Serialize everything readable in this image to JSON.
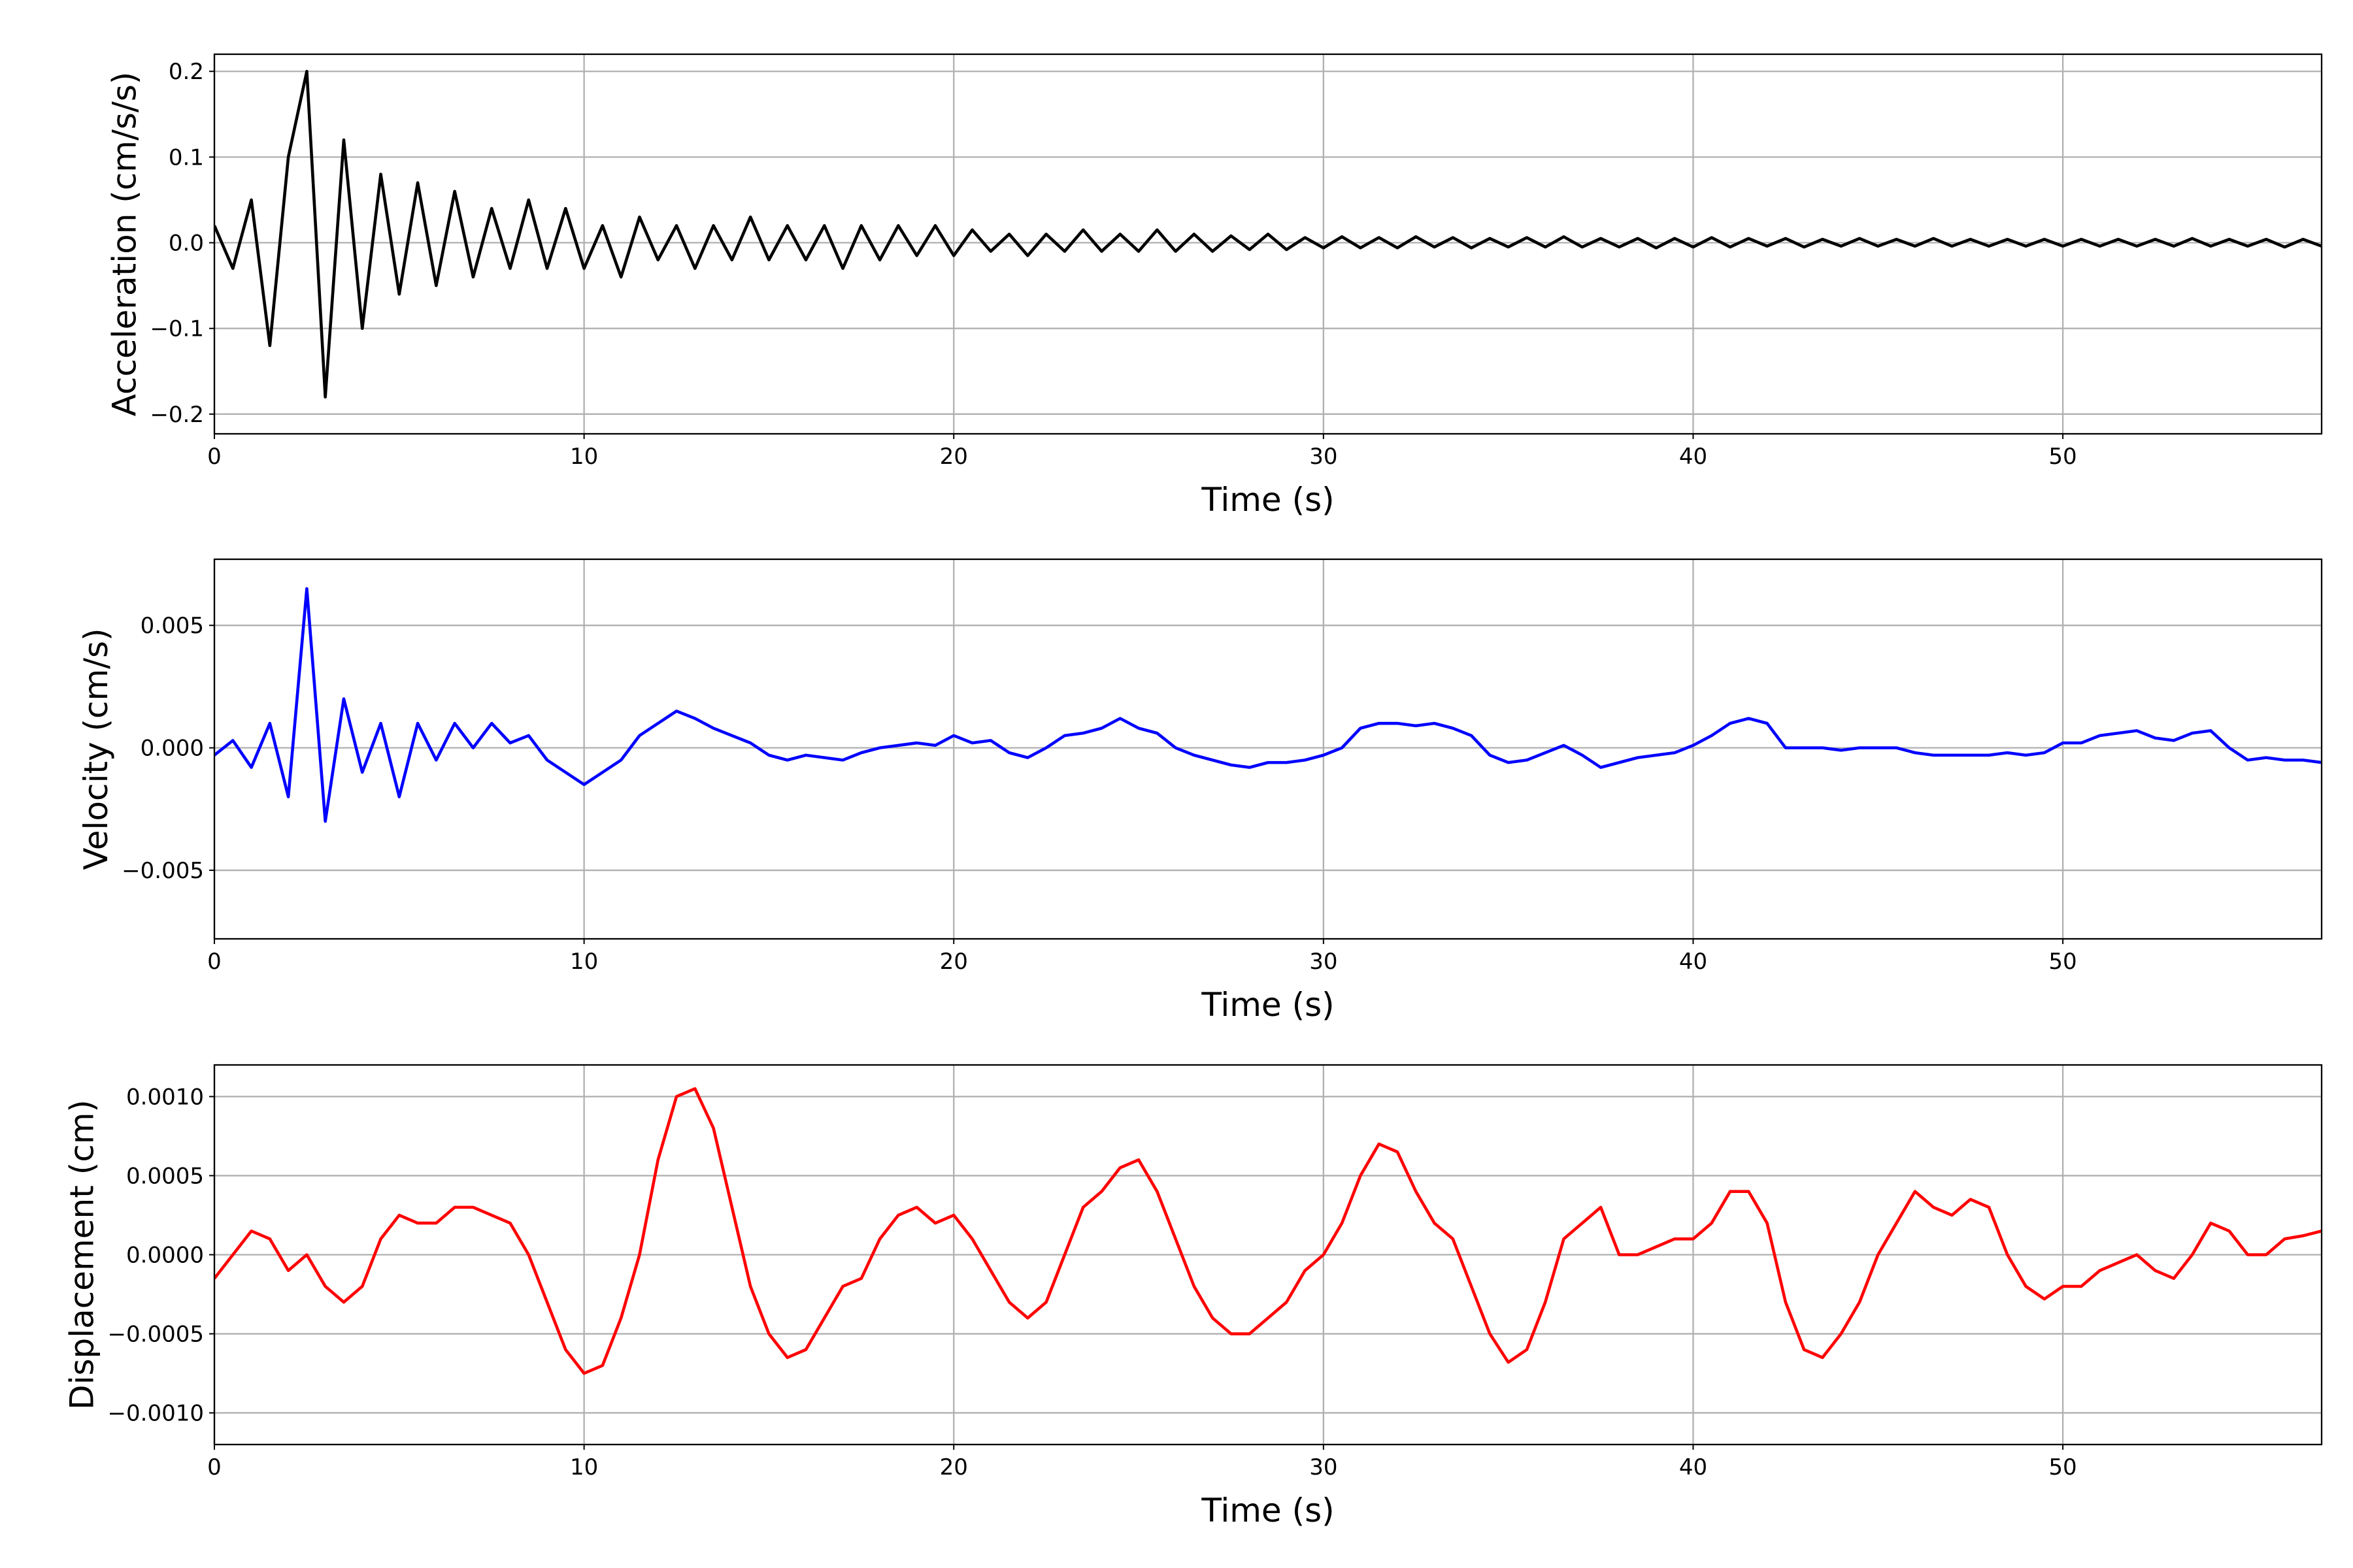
{
  "chart_data": [
    {
      "type": "line",
      "xlabel": "Time (s)",
      "ylabel": "Acceleration (cm/s/s)",
      "color": "#000000",
      "grid": true,
      "xlim": [
        0,
        57
      ],
      "ylim": [
        -0.223,
        0.22
      ],
      "xticks": [
        0,
        10,
        20,
        30,
        40,
        50
      ],
      "yticks": [
        {
          "value": -0.2,
          "label": "−0.2"
        },
        {
          "value": -0.1,
          "label": "−0.1"
        },
        {
          "value": 0,
          "label": "0.0"
        },
        {
          "value": 0.1,
          "label": "0.1"
        },
        {
          "value": 0.2,
          "label": "0.2"
        }
      ],
      "x": [
        0,
        0.5,
        1,
        1.5,
        2,
        2.5,
        3,
        3.5,
        4,
        4.5,
        5,
        5.5,
        6,
        6.5,
        7,
        7.5,
        8,
        8.5,
        9,
        9.5,
        10,
        10.5,
        11,
        11.5,
        12,
        12.5,
        13,
        13.5,
        14,
        14.5,
        15,
        15.5,
        16,
        16.5,
        17,
        17.5,
        18,
        18.5,
        19,
        19.5,
        20,
        20.5,
        21,
        21.5,
        22,
        22.5,
        23,
        23.5,
        24,
        24.5,
        25,
        25.5,
        26,
        26.5,
        27,
        27.5,
        28,
        28.5,
        29,
        29.5,
        30,
        30.5,
        31,
        31.5,
        32,
        32.5,
        33,
        33.5,
        34,
        34.5,
        35,
        35.5,
        36,
        36.5,
        37,
        37.5,
        38,
        38.5,
        39,
        39.5,
        40,
        40.5,
        41,
        41.5,
        42,
        42.5,
        43,
        43.5,
        44,
        44.5,
        45,
        45.5,
        46,
        46.5,
        47,
        47.5,
        48,
        48.5,
        49,
        49.5,
        50,
        50.5,
        51,
        51.5,
        52,
        52.5,
        53,
        53.5,
        54,
        54.5,
        55,
        55.5,
        56,
        56.5,
        57
      ],
      "values": [
        0.02,
        -0.03,
        0.05,
        -0.12,
        0.1,
        0.2,
        -0.18,
        0.12,
        -0.1,
        0.08,
        -0.06,
        0.07,
        -0.05,
        0.06,
        -0.04,
        0.04,
        -0.03,
        0.05,
        -0.03,
        0.04,
        -0.03,
        0.02,
        -0.04,
        0.03,
        -0.02,
        0.02,
        -0.03,
        0.02,
        -0.02,
        0.03,
        -0.02,
        0.02,
        -0.02,
        0.02,
        -0.03,
        0.02,
        -0.02,
        0.02,
        -0.015,
        0.02,
        -0.015,
        0.015,
        -0.01,
        0.01,
        -0.015,
        0.01,
        -0.01,
        0.015,
        -0.01,
        0.01,
        -0.01,
        0.015,
        -0.01,
        0.01,
        -0.01,
        0.008,
        -0.008,
        0.01,
        -0.008,
        0.006,
        -0.006,
        0.007,
        -0.006,
        0.006,
        -0.006,
        0.007,
        -0.005,
        0.006,
        -0.006,
        0.005,
        -0.005,
        0.006,
        -0.005,
        0.007,
        -0.005,
        0.005,
        -0.005,
        0.005,
        -0.006,
        0.005,
        -0.005,
        0.006,
        -0.005,
        0.005,
        -0.004,
        0.005,
        -0.005,
        0.004,
        -0.004,
        0.005,
        -0.004,
        0.004,
        -0.004,
        0.005,
        -0.004,
        0.004,
        -0.004,
        0.004,
        -0.004,
        0.004,
        -0.004,
        0.004,
        -0.004,
        0.004,
        -0.004,
        0.004,
        -0.004,
        0.005,
        -0.004,
        0.004,
        -0.004,
        0.004,
        -0.005,
        0.004,
        -0.004
      ]
    },
    {
      "type": "line",
      "xlabel": "Time (s)",
      "ylabel": "Velocity (cm/s)",
      "color": "#0000ff",
      "grid": true,
      "xlim": [
        0,
        57
      ],
      "ylim": [
        -0.0078,
        0.0077
      ],
      "xticks": [
        0,
        10,
        20,
        30,
        40,
        50
      ],
      "yticks": [
        {
          "value": -0.005,
          "label": "−0.005"
        },
        {
          "value": 0,
          "label": "0.000"
        },
        {
          "value": 0.005,
          "label": "0.005"
        }
      ],
      "x": [
        0,
        0.5,
        1,
        1.5,
        2,
        2.5,
        3,
        3.5,
        4,
        4.5,
        5,
        5.5,
        6,
        6.5,
        7,
        7.5,
        8,
        8.5,
        9,
        9.5,
        10,
        10.5,
        11,
        11.5,
        12,
        12.5,
        13,
        13.5,
        14,
        14.5,
        15,
        15.5,
        16,
        16.5,
        17,
        17.5,
        18,
        18.5,
        19,
        19.5,
        20,
        20.5,
        21,
        21.5,
        22,
        22.5,
        23,
        23.5,
        24,
        24.5,
        25,
        25.5,
        26,
        26.5,
        27,
        27.5,
        28,
        28.5,
        29,
        29.5,
        30,
        30.5,
        31,
        31.5,
        32,
        32.5,
        33,
        33.5,
        34,
        34.5,
        35,
        35.5,
        36,
        36.5,
        37,
        37.5,
        38,
        38.5,
        39,
        39.5,
        40,
        40.5,
        41,
        41.5,
        42,
        42.5,
        43,
        43.5,
        44,
        44.5,
        45,
        45.5,
        46,
        46.5,
        47,
        47.5,
        48,
        48.5,
        49,
        49.5,
        50,
        50.5,
        51,
        51.5,
        52,
        52.5,
        53,
        53.5,
        54,
        54.5,
        55,
        55.5,
        56,
        56.5,
        57
      ],
      "values": [
        -0.0003,
        0.0003,
        -0.0008,
        0.001,
        -0.002,
        0.0065,
        -0.003,
        0.002,
        -0.001,
        0.001,
        -0.002,
        0.001,
        -0.0005,
        0.001,
        0,
        0.001,
        0.0002,
        0.0005,
        -0.0005,
        -0.001,
        -0.0015,
        -0.001,
        -0.0005,
        0.0005,
        0.001,
        0.0015,
        0.0012,
        0.0008,
        0.0005,
        0.0002,
        -0.0003,
        -0.0005,
        -0.0003,
        -0.0004,
        -0.0005,
        -0.0002,
        0,
        0.0001,
        0.0002,
        0.0001,
        0.0005,
        0.0002,
        0.0003,
        -0.0002,
        -0.0004,
        0,
        0.0005,
        0.0006,
        0.0008,
        0.0012,
        0.0008,
        0.0006,
        0,
        -0.0003,
        -0.0005,
        -0.0007,
        -0.0008,
        -0.0006,
        -0.0006,
        -0.0005,
        -0.0003,
        0,
        0.0008,
        0.001,
        0.001,
        0.0009,
        0.001,
        0.0008,
        0.0005,
        -0.0003,
        -0.0006,
        -0.0005,
        -0.0002,
        0.0001,
        -0.0003,
        -0.0008,
        -0.0006,
        -0.0004,
        -0.0003,
        -0.0002,
        0.0001,
        0.0005,
        0.001,
        0.0012,
        0.001,
        0,
        0,
        0,
        -0.0001,
        0,
        0,
        0,
        -0.0002,
        -0.0003,
        -0.0003,
        -0.0003,
        -0.0003,
        -0.0002,
        -0.0003,
        -0.0002,
        0.0002,
        0.0002,
        0.0005,
        0.0006,
        0.0007,
        0.0004,
        0.0003,
        0.0006,
        0.0007,
        0,
        -0.0005,
        -0.0004,
        -0.0005,
        -0.0005,
        -0.0006
      ]
    },
    {
      "type": "line",
      "xlabel": "Time (s)",
      "ylabel": "Displacement (cm)",
      "color": "#ff0000",
      "grid": true,
      "xlim": [
        0,
        57
      ],
      "ylim": [
        -0.0012,
        0.0012
      ],
      "xticks": [
        0,
        10,
        20,
        30,
        40,
        50
      ],
      "yticks": [
        {
          "value": -0.001,
          "label": "−0.0010"
        },
        {
          "value": -0.0005,
          "label": "−0.0005"
        },
        {
          "value": 0,
          "label": "0.0000"
        },
        {
          "value": 0.0005,
          "label": "0.0005"
        },
        {
          "value": 0.001,
          "label": "0.0010"
        }
      ],
      "x": [
        0,
        0.5,
        1,
        1.5,
        2,
        2.5,
        3,
        3.5,
        4,
        4.5,
        5,
        5.5,
        6,
        6.5,
        7,
        7.5,
        8,
        8.5,
        9,
        9.5,
        10,
        10.5,
        11,
        11.5,
        12,
        12.5,
        13,
        13.5,
        14,
        14.5,
        15,
        15.5,
        16,
        16.5,
        17,
        17.5,
        18,
        18.5,
        19,
        19.5,
        20,
        20.5,
        21,
        21.5,
        22,
        22.5,
        23,
        23.5,
        24,
        24.5,
        25,
        25.5,
        26,
        26.5,
        27,
        27.5,
        28,
        28.5,
        29,
        29.5,
        30,
        30.5,
        31,
        31.5,
        32,
        32.5,
        33,
        33.5,
        34,
        34.5,
        35,
        35.5,
        36,
        36.5,
        37,
        37.5,
        38,
        38.5,
        39,
        39.5,
        40,
        40.5,
        41,
        41.5,
        42,
        42.5,
        43,
        43.5,
        44,
        44.5,
        45,
        45.5,
        46,
        46.5,
        47,
        47.5,
        48,
        48.5,
        49,
        49.5,
        50,
        50.5,
        51,
        51.5,
        52,
        52.5,
        53,
        53.5,
        54,
        54.5,
        55,
        55.5,
        56,
        56.5,
        57
      ],
      "values": [
        -0.00015,
        0,
        0.00015,
        0.0001,
        -0.0001,
        0,
        -0.0002,
        -0.0003,
        -0.0002,
        0.0001,
        0.00025,
        0.0002,
        0.0002,
        0.0003,
        0.0003,
        0.00025,
        0.0002,
        0,
        -0.0003,
        -0.0006,
        -0.00075,
        -0.0007,
        -0.0004,
        0,
        0.0006,
        0.001,
        0.00105,
        0.0008,
        0.0003,
        -0.0002,
        -0.0005,
        -0.00065,
        -0.0006,
        -0.0004,
        -0.0002,
        -0.00015,
        0.0001,
        0.00025,
        0.0003,
        0.0002,
        0.00025,
        0.0001,
        -0.0001,
        -0.0003,
        -0.0004,
        -0.0003,
        0,
        0.0003,
        0.0004,
        0.00055,
        0.0006,
        0.0004,
        0.0001,
        -0.0002,
        -0.0004,
        -0.0005,
        -0.0005,
        -0.0004,
        -0.0003,
        -0.0001,
        0,
        0.0002,
        0.0005,
        0.0007,
        0.00065,
        0.0004,
        0.0002,
        0.0001,
        -0.0002,
        -0.0005,
        -0.00068,
        -0.0006,
        -0.0003,
        0.0001,
        0.0002,
        0.0003,
        0,
        0,
        5e-05,
        0.0001,
        0.0001,
        0.0002,
        0.0004,
        0.0004,
        0.0002,
        -0.0003,
        -0.0006,
        -0.00065,
        -0.0005,
        -0.0003,
        0,
        0.0002,
        0.0004,
        0.0003,
        0.00025,
        0.00035,
        0.0003,
        0,
        -0.0002,
        -0.00028,
        -0.0002,
        -0.0002,
        -0.0001,
        -5e-05,
        0,
        -0.0001,
        -0.00015,
        0,
        0.0002,
        0.00015,
        0,
        0,
        0.0001,
        0.00012,
        0.00015
      ]
    }
  ]
}
